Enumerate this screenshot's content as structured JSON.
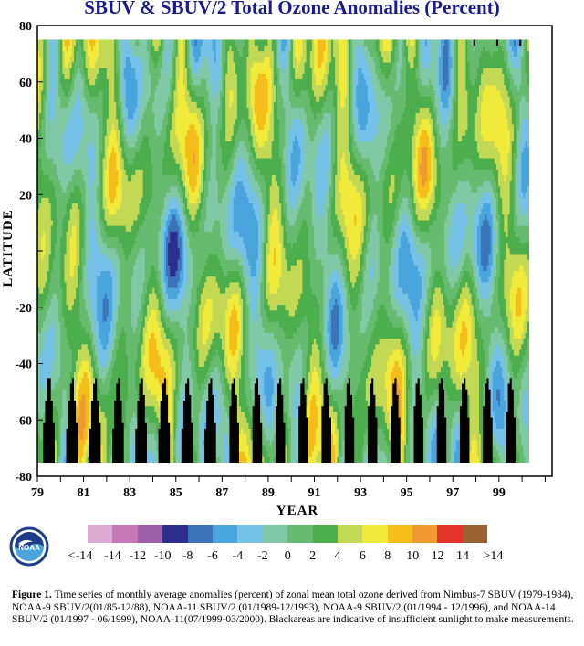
{
  "chart_data": {
    "type": "heatmap",
    "title": "SBUV & SBUV/2 Total Ozone Anomalies (Percent)",
    "xlabel": "YEAR",
    "ylabel": "LATITUDE",
    "xlim": [
      1979,
      2001.3
    ],
    "ylim": [
      -80,
      80
    ],
    "x_tick_labels": [
      "79",
      "81",
      "83",
      "85",
      "87",
      "89",
      "91",
      "93",
      "95",
      "97",
      "99"
    ],
    "y_tick_labels": [
      "80",
      "60",
      "40",
      "20",
      "",
      "-20",
      "-40",
      "-60",
      "-80"
    ],
    "y_tick_values": [
      80,
      60,
      40,
      20,
      0,
      -20,
      -40,
      -60,
      -80
    ],
    "data_extent": {
      "x": [
        1979,
        2000.3
      ],
      "latitude": [
        -75,
        75
      ]
    },
    "colorbar": {
      "labels": [
        "<-14",
        "-14",
        "-12",
        "-10",
        "-8",
        "-6",
        "-4",
        "-2",
        "0",
        "2",
        "4",
        "6",
        "8",
        "10",
        "12",
        "14",
        ">14"
      ],
      "colors": [
        "#dcaad2",
        "#c678b6",
        "#9d5fa8",
        "#2d2f8f",
        "#3c74ba",
        "#4aa5dd",
        "#76c1e8",
        "#80c8a6",
        "#67bb6e",
        "#4cae4c",
        "#c3d955",
        "#f2ea3a",
        "#f5bd1a",
        "#ef9931",
        "#e2342a",
        "#9a6233"
      ],
      "missing_color": "#000000",
      "missing_meaning": "insufficient sunlight"
    }
  },
  "caption": {
    "bold": "Figure 1.",
    "text": " Time series of monthly average anomalies (percent) of zonal mean total ozone derived from Nimbus-7 SBUV (1979-1984), NOAA-9 SBUV/2(01/85-12/88), NOAA-11 SBUV/2 (01/1989-12/1993), NOAA-9 SBUV/2 (01/1994 - 12/1996), and NOAA-14 SBUV/2 (01/1997 - 06/1999), NOAA-11(07/1999-03/2000). Blackareas are indicative of insufficient sunlight to make measurements."
  },
  "logo": {
    "text": "NOAA"
  }
}
